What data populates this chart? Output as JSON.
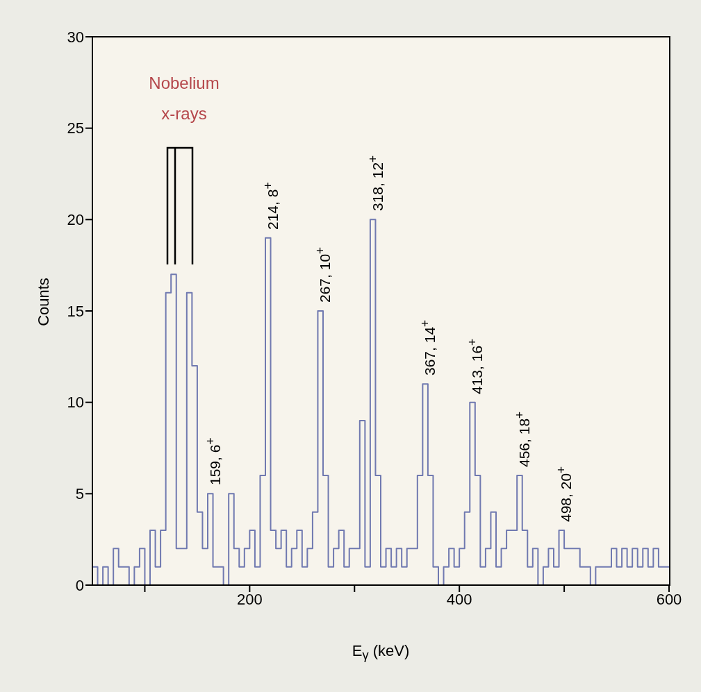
{
  "chart_data": {
    "type": "histogram",
    "xlabel": "E$_{γ}$ (keV)",
    "ylabel": "Counts",
    "color": "#7079b0",
    "xlim": [
      50,
      600
    ],
    "xticks": [
      {
        "value": 100,
        "label": null
      },
      200,
      {
        "value": 300,
        "label": null
      },
      400,
      {
        "value": 500,
        "label": null
      },
      600
    ],
    "ylim": [
      0,
      30
    ],
    "yticks": [
      0,
      5,
      10,
      15,
      20,
      25,
      30
    ],
    "bins": [
      50,
      55,
      60,
      65,
      70,
      75,
      80,
      85,
      90,
      95,
      100,
      105,
      110,
      115,
      120,
      125,
      130,
      135,
      140,
      145,
      150,
      155,
      160,
      165,
      170,
      175,
      180,
      185,
      190,
      195,
      200,
      205,
      210,
      215,
      220,
      225,
      230,
      235,
      240,
      245,
      250,
      255,
      260,
      265,
      270,
      275,
      280,
      285,
      290,
      295,
      300,
      305,
      310,
      315,
      320,
      325,
      330,
      335,
      340,
      345,
      350,
      355,
      360,
      365,
      370,
      375,
      380,
      385,
      390,
      395,
      400,
      405,
      410,
      415,
      420,
      425,
      430,
      435,
      440,
      445,
      450,
      455,
      460,
      465,
      470,
      475,
      480,
      485,
      490,
      495,
      500,
      505,
      510,
      515,
      520,
      525,
      530,
      535,
      540,
      545,
      550,
      555,
      560,
      565,
      570,
      575,
      580,
      585,
      590,
      595,
      600
    ],
    "values": [
      1,
      0,
      1,
      0,
      2,
      1,
      1,
      0,
      1,
      2,
      0,
      3,
      1,
      3,
      16,
      17,
      2,
      2,
      16,
      12,
      4,
      2,
      5,
      1,
      1,
      0,
      5,
      2,
      1,
      2,
      3,
      1,
      6,
      19,
      3,
      2,
      3,
      1,
      2,
      3,
      1,
      2,
      4,
      15,
      6,
      1,
      2,
      3,
      1,
      2,
      2,
      9,
      1,
      20,
      6,
      1,
      2,
      1,
      2,
      1,
      2,
      2,
      6,
      11,
      6,
      1,
      0,
      1,
      2,
      1,
      2,
      4,
      10,
      6,
      1,
      2,
      4,
      1,
      2,
      3,
      3,
      6,
      3,
      1,
      2,
      0,
      1,
      2,
      1,
      3,
      2,
      2,
      2,
      1,
      1,
      0,
      1,
      1,
      1,
      2,
      1,
      2,
      1,
      2,
      1,
      2,
      1,
      2,
      1,
      1
    ],
    "annotations": [
      "Nobelium\nx-rays",
      {
        "text": "159, 6$^{+}$",
        "x": 162.5,
        "y": 5
      },
      {
        "text": "214, 8$^{+}$",
        "x": 217.5,
        "y": 19
      },
      {
        "text": "267, 10$^{+}$",
        "x": 267.5,
        "y": 15
      },
      {
        "text": "318, 12$^{+}$",
        "x": 317.5,
        "y": 20
      },
      {
        "text": "367, 14$^{+}$",
        "x": 367.5,
        "y": 11
      },
      {
        "text": "413, 16$^{+}$",
        "x": 412.5,
        "y": 10
      },
      {
        "text": "456, 18$^{+}$",
        "x": 457.5,
        "y": 6
      },
      {
        "text": "498, 20$^{+}$",
        "x": 497.5,
        "y": 3
      }
    ]
  }
}
